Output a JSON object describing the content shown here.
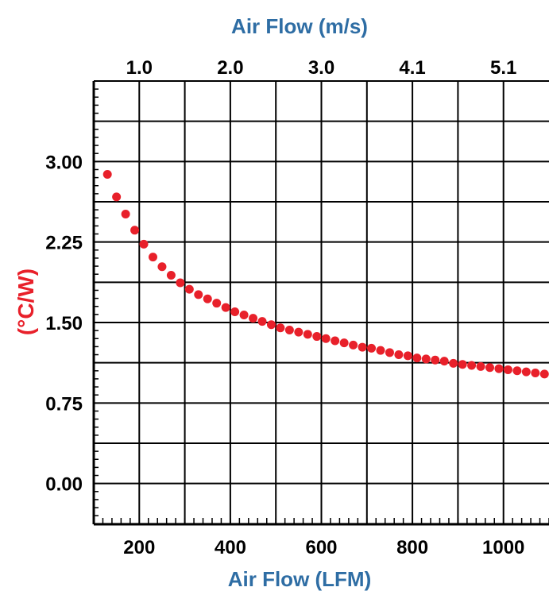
{
  "colors": {
    "axis_title": "#2E6DA4",
    "ylabel": "#E8202A",
    "marker": "#E8202A",
    "grid": "#000000",
    "tick_text": "#000000"
  },
  "chart_data": {
    "type": "scatter",
    "title_top": "Air Flow (m/s)",
    "xlabel": "Air Flow (LFM)",
    "ylabel": "(°C/W)",
    "xlim": [
      100,
      1100
    ],
    "ylim": [
      -0.38,
      3.75
    ],
    "x_ticks": [
      "200",
      "400",
      "600",
      "800",
      "1000"
    ],
    "x_tick_values": [
      200,
      400,
      600,
      800,
      1000
    ],
    "x2_ticks": [
      "1.0",
      "2.0",
      "3.0",
      "4.1",
      "5.1"
    ],
    "x2_tick_positions_lfm": [
      200,
      400,
      600,
      800,
      1000
    ],
    "y_ticks": [
      "0.00",
      "0.75",
      "1.50",
      "2.25",
      "3.00"
    ],
    "y_tick_values": [
      0,
      0.75,
      1.5,
      2.25,
      3.0
    ],
    "grid": true,
    "marker": "filled-circle",
    "series": [
      {
        "x": [
          130,
          150,
          170,
          190,
          210,
          230,
          250,
          270,
          290,
          310,
          330,
          350,
          370,
          390,
          410,
          430,
          450,
          470,
          490,
          510,
          530,
          550,
          570,
          590,
          610,
          630,
          650,
          670,
          690,
          710,
          730,
          750,
          770,
          790,
          810,
          830,
          850,
          870,
          890,
          910,
          930,
          950,
          970,
          990,
          1010,
          1030,
          1050,
          1070,
          1090
        ],
        "values": [
          2.88,
          2.67,
          2.51,
          2.36,
          2.23,
          2.11,
          2.02,
          1.94,
          1.87,
          1.81,
          1.76,
          1.72,
          1.68,
          1.64,
          1.6,
          1.57,
          1.54,
          1.51,
          1.48,
          1.45,
          1.43,
          1.41,
          1.39,
          1.37,
          1.35,
          1.33,
          1.31,
          1.29,
          1.27,
          1.26,
          1.24,
          1.22,
          1.2,
          1.19,
          1.17,
          1.16,
          1.15,
          1.14,
          1.12,
          1.11,
          1.1,
          1.09,
          1.08,
          1.07,
          1.06,
          1.05,
          1.04,
          1.03,
          1.02
        ]
      }
    ]
  }
}
